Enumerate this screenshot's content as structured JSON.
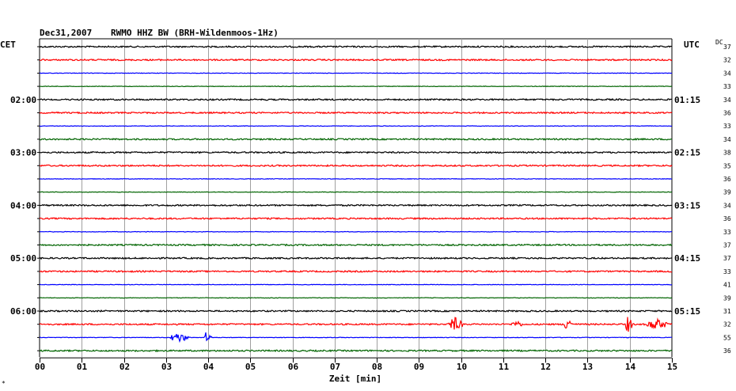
{
  "header": {
    "date": "Dec31,2007",
    "station": "RWMO HHZ BW (BRH-Wildenmoos-1Hz)",
    "left_zone": "CET",
    "right_zone": "UTC",
    "dc_label": "DC",
    "corner_mark": "*"
  },
  "chart_data": {
    "type": "line",
    "title": "Dec31,2007   RWMO HHZ BW (BRH-Wildenmoos-1Hz)",
    "xlabel": "Zeit [min]",
    "ylabel": "",
    "x_ticks": [
      "00",
      "01",
      "02",
      "03",
      "04",
      "05",
      "06",
      "07",
      "08",
      "09",
      "10",
      "11",
      "12",
      "13",
      "14",
      "15"
    ],
    "xlim": [
      0,
      15
    ],
    "grid": true,
    "traces_count": 24,
    "trace_colors": [
      "#000000",
      "#ff0000",
      "#0000ff",
      "#006400"
    ],
    "left_time_labels": [
      {
        "trace": 4,
        "label": "02:00"
      },
      {
        "trace": 8,
        "label": "03:00"
      },
      {
        "trace": 12,
        "label": "04:00"
      },
      {
        "trace": 16,
        "label": "05:00"
      },
      {
        "trace": 20,
        "label": "06:00"
      }
    ],
    "right_time_labels": [
      {
        "trace": 4,
        "label": "01:15"
      },
      {
        "trace": 8,
        "label": "02:15"
      },
      {
        "trace": 12,
        "label": "03:15"
      },
      {
        "trace": 16,
        "label": "04:15"
      },
      {
        "trace": 20,
        "label": "05:15"
      }
    ],
    "dc_values": [
      "37",
      "32",
      "34",
      "33",
      "34",
      "36",
      "33",
      "34",
      "38",
      "35",
      "36",
      "39",
      "34",
      "36",
      "33",
      "37",
      "37",
      "33",
      "41",
      "39",
      "31",
      "32",
      "55",
      "36"
    ],
    "events": [
      {
        "trace": 22,
        "start_min": 3.1,
        "end_min": 3.6,
        "amplitude": 6
      },
      {
        "trace": 22,
        "start_min": 3.9,
        "end_min": 4.1,
        "amplitude": 7
      },
      {
        "trace": 21,
        "start_min": 9.7,
        "end_min": 10.1,
        "amplitude": 9
      },
      {
        "trace": 21,
        "start_min": 11.2,
        "end_min": 11.5,
        "amplitude": 5
      },
      {
        "trace": 21,
        "start_min": 12.45,
        "end_min": 12.65,
        "amplitude": 12
      },
      {
        "trace": 21,
        "start_min": 13.9,
        "end_min": 14.1,
        "amplitude": 10
      },
      {
        "trace": 21,
        "start_min": 14.4,
        "end_min": 15.0,
        "amplitude": 7
      }
    ]
  }
}
